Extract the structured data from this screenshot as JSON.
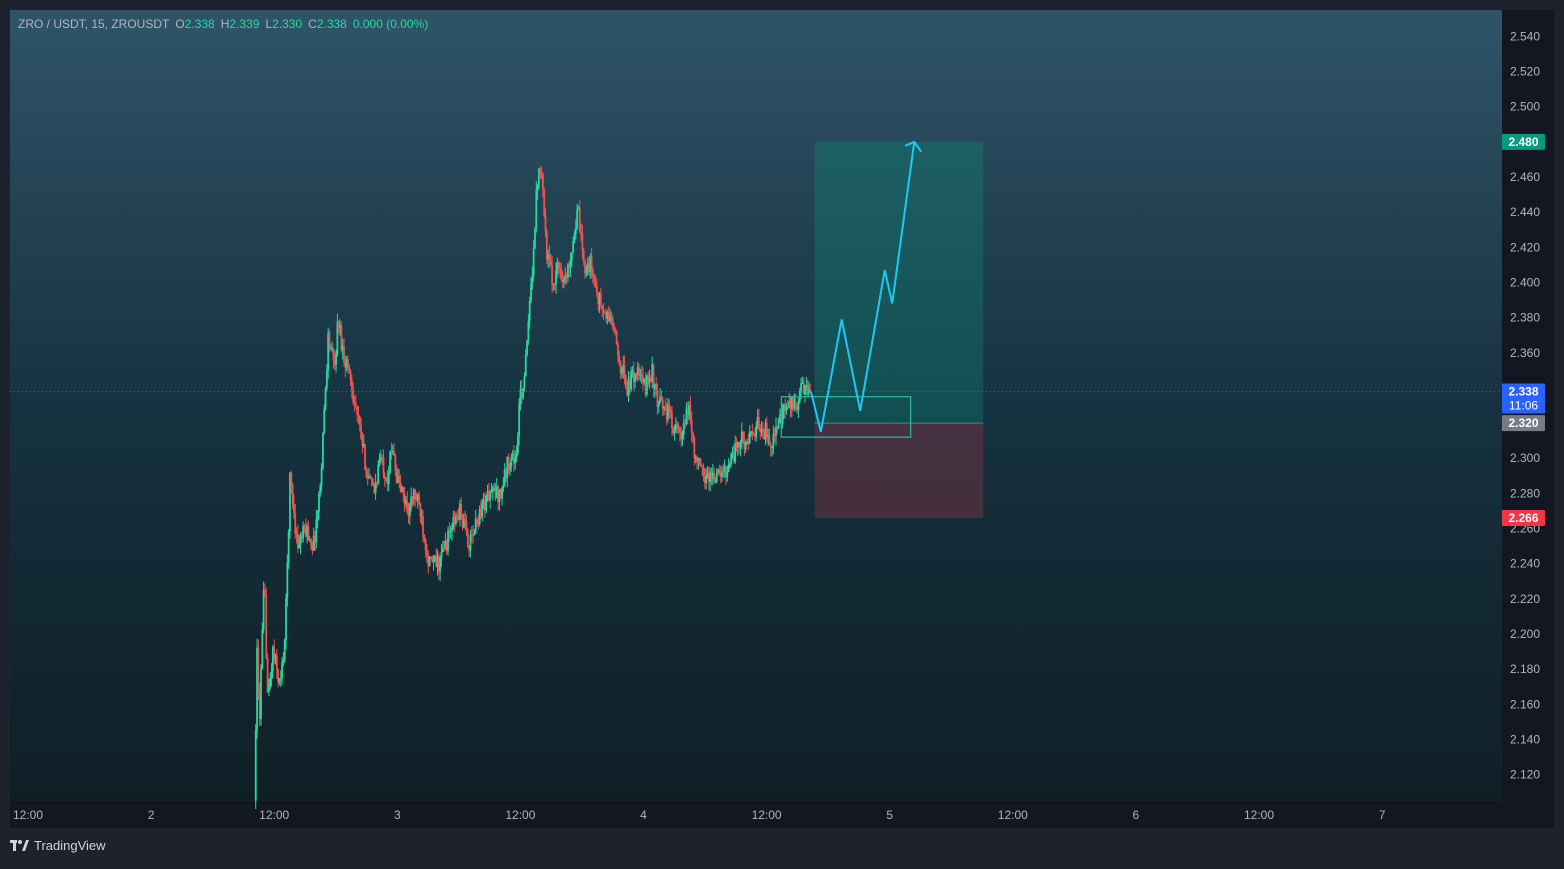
{
  "header": {
    "symbol": "ZRO / USDT, 15, ZROUSDT",
    "open_label": "O",
    "open": "2.338",
    "high_label": "H",
    "high": "2.339",
    "low_label": "L",
    "low": "2.330",
    "close_label": "C",
    "close": "2.338",
    "change": "0.000 (0.00%)"
  },
  "branding": {
    "name": "TradingView"
  },
  "colors": {
    "up": "#26d9a0",
    "down": "#ef5350",
    "projection": "#1ec8f0",
    "last_price": "#2962ff",
    "target": "#089981",
    "stop": "#f23645",
    "entry": "#787b86"
  },
  "chart_data": {
    "type": "candlestick",
    "instrument": "ZRO / USDT",
    "interval": "15",
    "ylim": [
      2.105,
      2.555
    ],
    "y_ticks": [
      "2.120",
      "2.140",
      "2.160",
      "2.180",
      "2.200",
      "2.220",
      "2.240",
      "2.260",
      "2.280",
      "2.300",
      "2.320",
      "2.340",
      "2.360",
      "2.380",
      "2.400",
      "2.420",
      "2.440",
      "2.460",
      "2.480",
      "2.500",
      "2.520",
      "2.540"
    ],
    "x_ticks": [
      "12:00",
      "2",
      "12:00",
      "3",
      "12:00",
      "4",
      "12:00",
      "5",
      "12:00",
      "6",
      "12:00",
      "7"
    ],
    "x_tick_index": [
      0,
      1,
      2,
      3,
      4,
      5,
      6,
      7,
      8,
      9,
      10,
      11
    ],
    "x_range": [
      0,
      12
    ],
    "price_path": [
      [
        1.85,
        2.105
      ],
      [
        1.87,
        2.19
      ],
      [
        1.89,
        2.15
      ],
      [
        1.93,
        2.23
      ],
      [
        1.96,
        2.16
      ],
      [
        2.0,
        2.19
      ],
      [
        2.06,
        2.17
      ],
      [
        2.1,
        2.2
      ],
      [
        2.14,
        2.29
      ],
      [
        2.2,
        2.25
      ],
      [
        2.27,
        2.26
      ],
      [
        2.33,
        2.25
      ],
      [
        2.38,
        2.28
      ],
      [
        2.42,
        2.33
      ],
      [
        2.45,
        2.37
      ],
      [
        2.5,
        2.35
      ],
      [
        2.53,
        2.38
      ],
      [
        2.57,
        2.36
      ],
      [
        2.62,
        2.35
      ],
      [
        2.67,
        2.33
      ],
      [
        2.72,
        2.31
      ],
      [
        2.77,
        2.29
      ],
      [
        2.82,
        2.28
      ],
      [
        2.87,
        2.3
      ],
      [
        2.93,
        2.29
      ],
      [
        2.98,
        2.31
      ],
      [
        3.0,
        2.29
      ],
      [
        3.05,
        2.28
      ],
      [
        3.1,
        2.27
      ],
      [
        3.15,
        2.28
      ],
      [
        3.2,
        2.27
      ],
      [
        3.27,
        2.24
      ],
      [
        3.35,
        2.24
      ],
      [
        3.45,
        2.26
      ],
      [
        3.52,
        2.27
      ],
      [
        3.6,
        2.25
      ],
      [
        3.68,
        2.27
      ],
      [
        3.76,
        2.28
      ],
      [
        3.85,
        2.28
      ],
      [
        3.92,
        2.3
      ],
      [
        3.98,
        2.3
      ],
      [
        4.0,
        2.33
      ],
      [
        4.05,
        2.35
      ],
      [
        4.1,
        2.4
      ],
      [
        4.15,
        2.46
      ],
      [
        4.18,
        2.47
      ],
      [
        4.22,
        2.42
      ],
      [
        4.27,
        2.4
      ],
      [
        4.32,
        2.41
      ],
      [
        4.38,
        2.4
      ],
      [
        4.45,
        2.43
      ],
      [
        4.48,
        2.44
      ],
      [
        4.52,
        2.41
      ],
      [
        4.58,
        2.41
      ],
      [
        4.65,
        2.39
      ],
      [
        4.7,
        2.38
      ],
      [
        4.75,
        2.38
      ],
      [
        4.8,
        2.36
      ],
      [
        4.88,
        2.34
      ],
      [
        4.95,
        2.35
      ],
      [
        5.02,
        2.34
      ],
      [
        5.08,
        2.35
      ],
      [
        5.12,
        2.33
      ],
      [
        5.18,
        2.33
      ],
      [
        5.25,
        2.32
      ],
      [
        5.32,
        2.31
      ],
      [
        5.38,
        2.33
      ],
      [
        5.43,
        2.3
      ],
      [
        5.5,
        2.29
      ],
      [
        5.58,
        2.29
      ],
      [
        5.65,
        2.29
      ],
      [
        5.72,
        2.3
      ],
      [
        5.8,
        2.31
      ],
      [
        5.88,
        2.31
      ],
      [
        5.95,
        2.32
      ],
      [
        6.05,
        2.31
      ],
      [
        6.12,
        2.32
      ],
      [
        6.18,
        2.33
      ],
      [
        6.25,
        2.33
      ],
      [
        6.3,
        2.34
      ],
      [
        6.36,
        2.334
      ]
    ],
    "current_price": 2.338,
    "countdown": "11:06",
    "position": {
      "side": "long",
      "entry": 2.32,
      "target": 2.48,
      "stop": 2.266,
      "labels": {
        "target": "2.480",
        "entry": "2.320",
        "stop": "2.266",
        "current": "2.338"
      }
    },
    "zone": {
      "top": 2.335,
      "bottom": 2.312
    },
    "projection_path": [
      [
        6.36,
        2.338
      ],
      [
        6.44,
        2.315
      ],
      [
        6.61,
        2.379
      ],
      [
        6.76,
        2.327
      ],
      [
        6.96,
        2.407
      ],
      [
        7.02,
        2.388
      ],
      [
        7.2,
        2.48
      ]
    ]
  }
}
